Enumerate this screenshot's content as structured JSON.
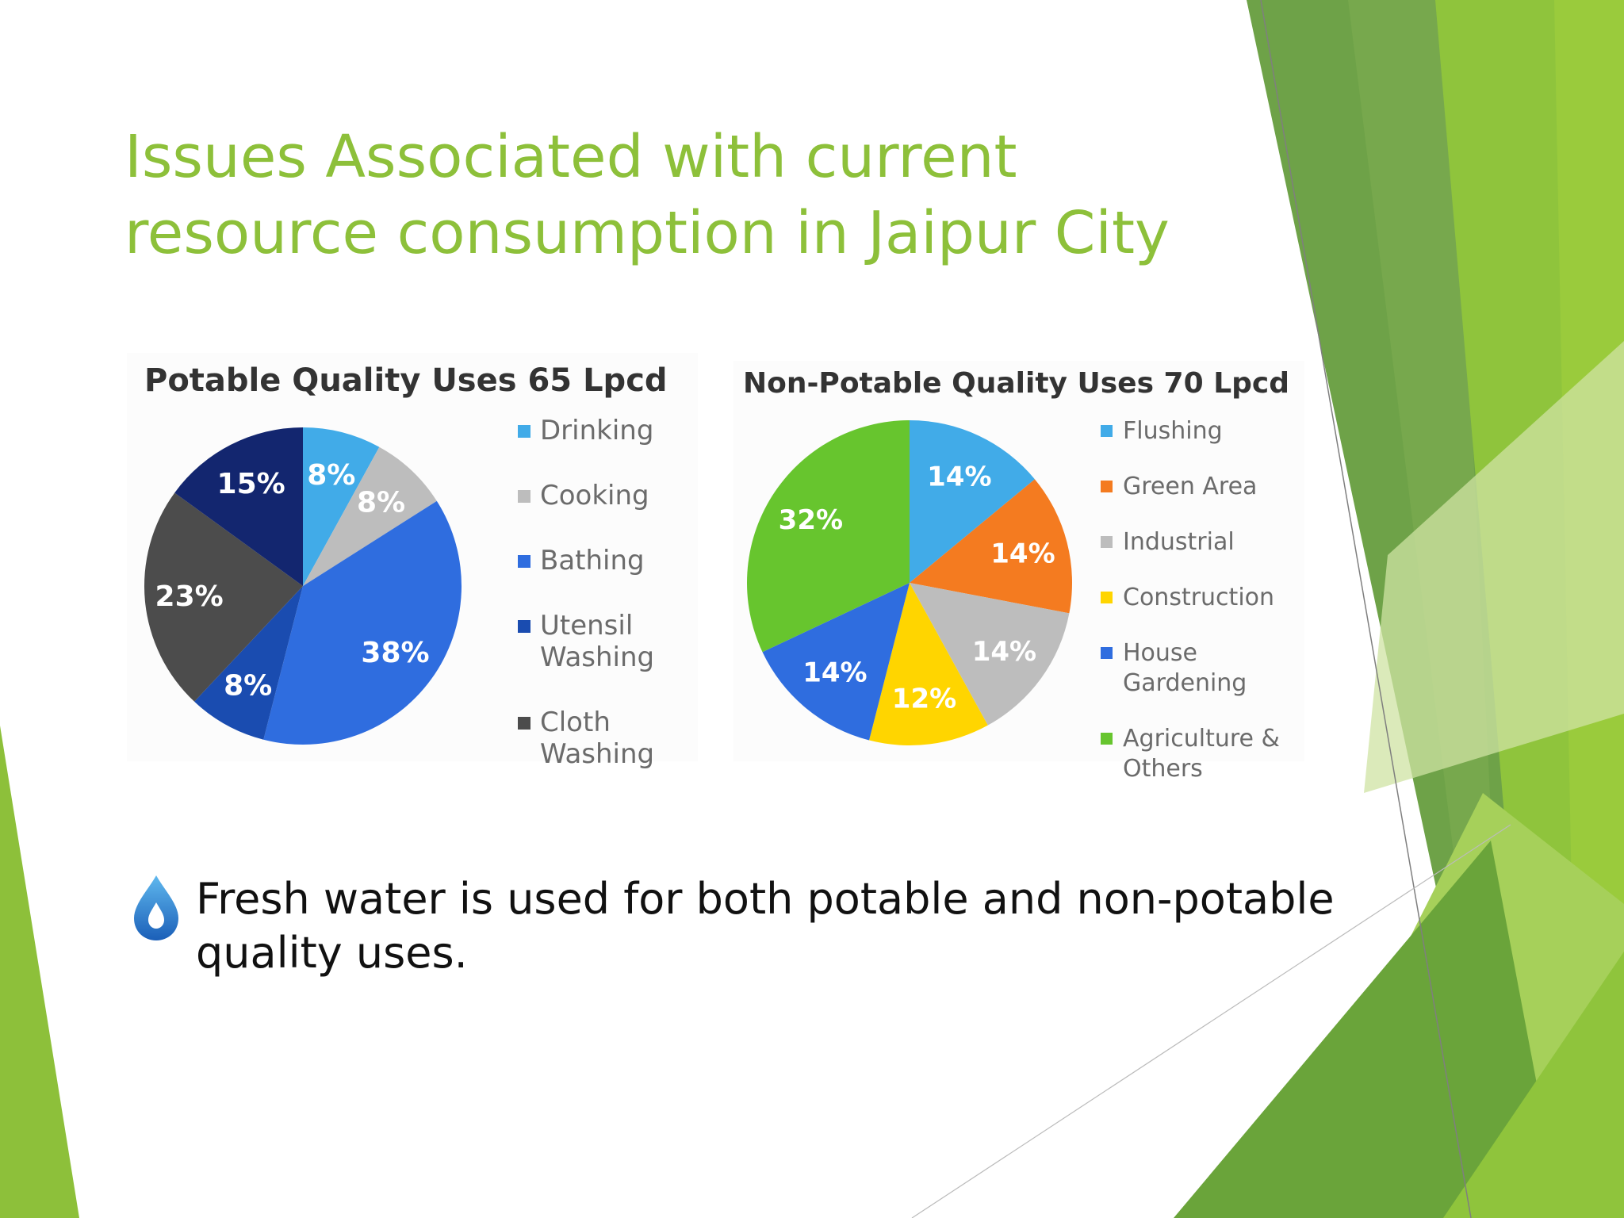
{
  "slide": {
    "title_line1": "Issues Associated with current",
    "title_line2": "resource consumption in Jaipur City",
    "bullet_text": "Fresh water is used for both potable and non-potable quality uses.",
    "bullet_icon": "water-drop-icon",
    "accent_color": "#8dc03a"
  },
  "chart_data": [
    {
      "type": "pie",
      "title": "Potable Quality Uses 65 Lpcd",
      "legend_position": "right",
      "slices": [
        {
          "label": "Drinking",
          "value": 8,
          "display": "8%",
          "color": "#41abe8"
        },
        {
          "label": "Cooking",
          "value": 8,
          "display": "8%",
          "color": "#bdbdbd"
        },
        {
          "label": "Bathing",
          "value": 38,
          "display": "38%",
          "color": "#2f6ddf"
        },
        {
          "label": "Utensil Washing",
          "value": 8,
          "display": "8%",
          "color": "#1a4cb0"
        },
        {
          "label": "Cloth Washing",
          "value": 23,
          "display": "23%",
          "color": "#4c4c4c"
        },
        {
          "label": "",
          "value": 15,
          "display": "15%",
          "color": "#13266f"
        }
      ],
      "legend": [
        {
          "lines": [
            "Drinking"
          ],
          "color": "#41abe8"
        },
        {
          "lines": [
            "Cooking"
          ],
          "color": "#bdbdbd"
        },
        {
          "lines": [
            "Bathing"
          ],
          "color": "#2f6ddf"
        },
        {
          "lines": [
            "Utensil",
            "Washing"
          ],
          "color": "#1a4cb0"
        },
        {
          "lines": [
            "Cloth",
            "Washing"
          ],
          "color": "#4c4c4c"
        }
      ]
    },
    {
      "type": "pie",
      "title": "Non-Potable Quality Uses 70 Lpcd",
      "legend_position": "right",
      "slices": [
        {
          "label": "Flushing",
          "value": 14,
          "display": "14%",
          "color": "#41abe8"
        },
        {
          "label": "Green Area",
          "value": 14,
          "display": "14%",
          "color": "#f47b20"
        },
        {
          "label": "Industrial",
          "value": 14,
          "display": "14%",
          "color": "#bdbdbd"
        },
        {
          "label": "Construction",
          "value": 12,
          "display": "12%",
          "color": "#ffd500"
        },
        {
          "label": "House Gardening",
          "value": 14,
          "display": "14%",
          "color": "#2f6ddf"
        },
        {
          "label": "Agriculture & Others",
          "value": 32,
          "display": "32%",
          "color": "#67c52e"
        }
      ],
      "legend": [
        {
          "lines": [
            "Flushing"
          ],
          "color": "#41abe8"
        },
        {
          "lines": [
            "Green Area"
          ],
          "color": "#f47b20"
        },
        {
          "lines": [
            "Industrial"
          ],
          "color": "#bdbdbd"
        },
        {
          "lines": [
            "Construction"
          ],
          "color": "#ffd500"
        },
        {
          "lines": [
            "House",
            "Gardening"
          ],
          "color": "#2f6ddf"
        },
        {
          "lines": [
            "Agriculture &",
            "Others"
          ],
          "color": "#67c52e"
        }
      ]
    }
  ]
}
